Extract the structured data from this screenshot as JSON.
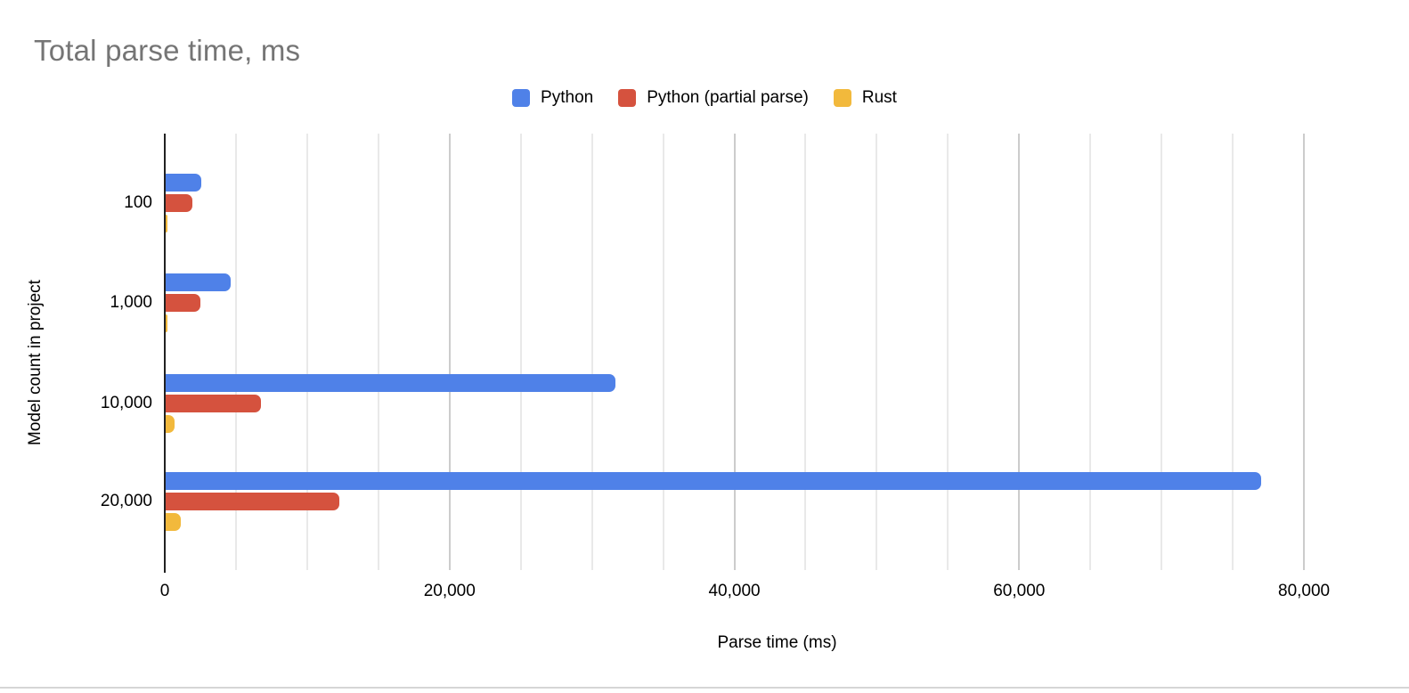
{
  "chart_data": {
    "type": "bar",
    "orientation": "horizontal",
    "title": "Total parse time, ms",
    "xlabel": "Parse time (ms)",
    "ylabel": "Model count in project",
    "categories": [
      "100",
      "1,000",
      "10,000",
      "20,000"
    ],
    "series": [
      {
        "name": "Python",
        "color": "#4F81E8",
        "values": [
          2500,
          4550,
          31600,
          77000
        ]
      },
      {
        "name": "Python (partial parse)",
        "color": "#D5523E",
        "values": [
          1900,
          2450,
          6700,
          12200
        ]
      },
      {
        "name": "Rust",
        "color": "#F2B93C",
        "values": [
          130,
          140,
          600,
          1050
        ]
      }
    ],
    "xlim": [
      0,
      86000
    ],
    "x_major_ticks": [
      0,
      20000,
      40000,
      60000,
      80000
    ],
    "x_tick_labels": [
      "0",
      "20,000",
      "40,000",
      "60,000",
      "80,000"
    ],
    "x_minor_step": 5000,
    "grid": "vertical",
    "legend_position": "top-center"
  },
  "styles": {
    "title_color": "#757575",
    "text_color": "#000000",
    "axis_line_color": "#212121",
    "major_grid_color": "#cccccc",
    "minor_grid_color": "#e9e9e9",
    "divider_color": "#d6d6d6",
    "background": "#ffffff"
  }
}
